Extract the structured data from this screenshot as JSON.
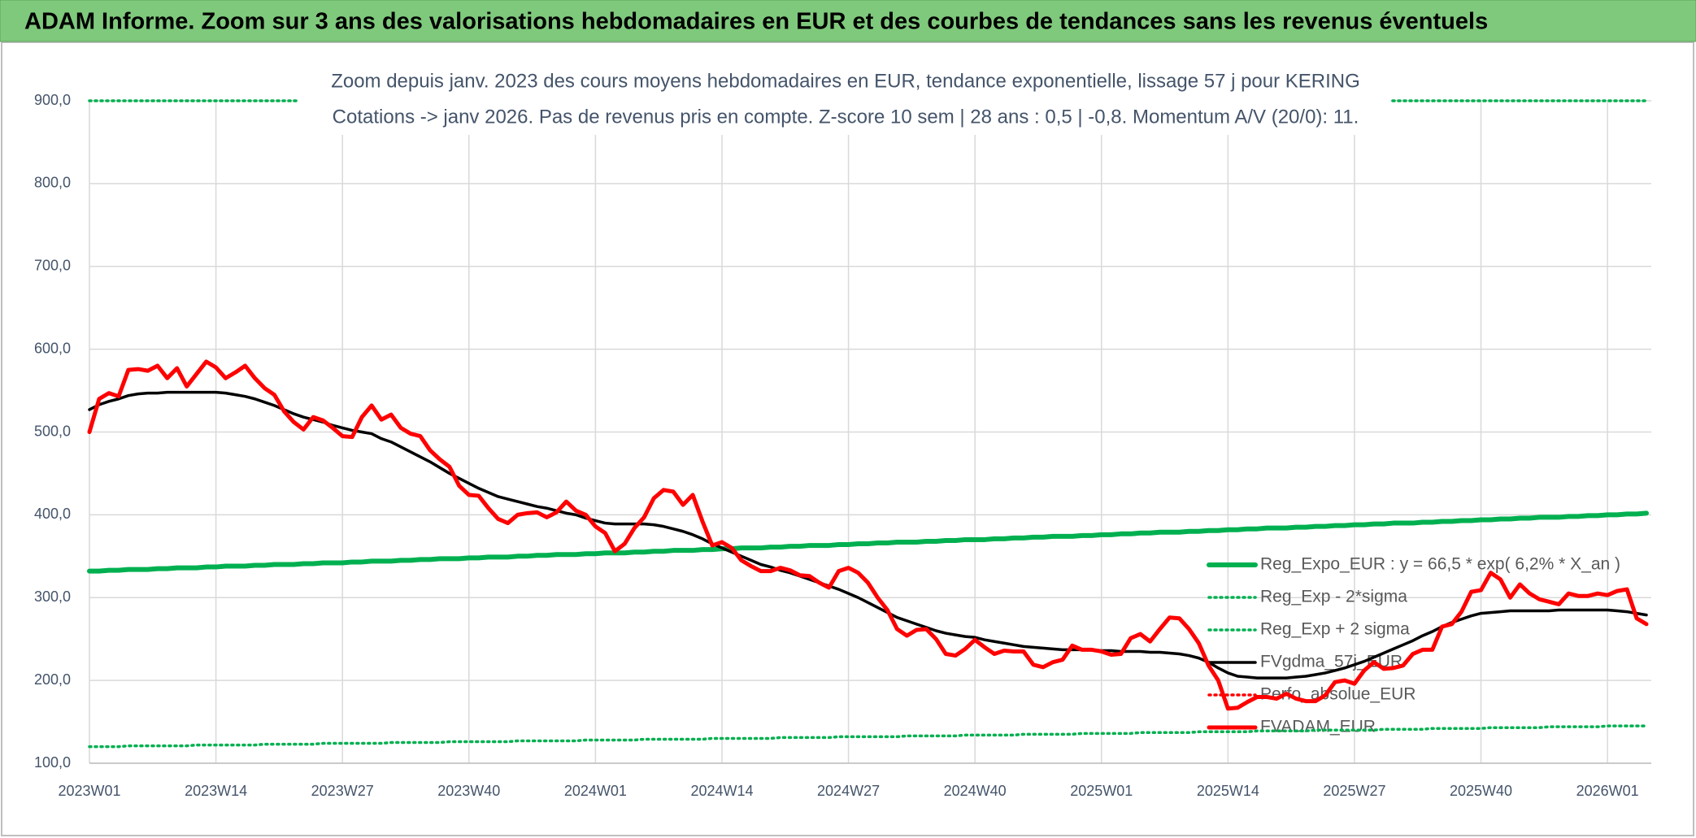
{
  "chart_data": {
    "type": "line",
    "title": "ADAM Informe. Zoom sur 3 ans des valorisations hebdomadaires en EUR et des courbes de tendances sans les revenus éventuels",
    "subtitle": [
      "Zoom depuis janv. 2023 des cours moyens hebdomadaires en EUR, tendance exponentielle, lissage 57 j pour KERING",
      "Cotations -> janv 2026. Pas de revenus pris en compte. Z-score 10 sem | 28 ans : 0,5 | -0,8. Momentum A/V (20/0): 11."
    ],
    "categories": [
      "2023W01",
      null,
      null,
      null,
      null,
      null,
      null,
      null,
      null,
      null,
      null,
      null,
      null,
      "2023W14",
      null,
      null,
      null,
      null,
      null,
      null,
      null,
      null,
      null,
      null,
      null,
      null,
      "2023W27",
      null,
      null,
      null,
      null,
      null,
      null,
      null,
      null,
      null,
      null,
      null,
      null,
      "2023W40",
      null,
      null,
      null,
      null,
      null,
      null,
      null,
      null,
      null,
      null,
      null,
      null,
      "2024W01",
      null,
      null,
      null,
      null,
      null,
      null,
      null,
      null,
      null,
      null,
      null,
      null,
      "2024W14",
      null,
      null,
      null,
      null,
      null,
      null,
      null,
      null,
      null,
      null,
      null,
      null,
      "2024W27",
      null,
      null,
      null,
      null,
      null,
      null,
      null,
      null,
      null,
      null,
      null,
      null,
      "2024W40",
      null,
      null,
      null,
      null,
      null,
      null,
      null,
      null,
      null,
      null,
      null,
      null,
      "2025W01",
      null,
      null,
      null,
      null,
      null,
      null,
      null,
      null,
      null,
      null,
      null,
      null,
      "2025W14",
      null,
      null,
      null,
      null,
      null,
      null,
      null,
      null,
      null,
      null,
      null,
      null,
      "2025W27",
      null,
      null,
      null,
      null,
      null,
      null,
      null,
      null,
      null,
      null,
      null,
      null,
      "2025W40",
      null,
      null,
      null,
      null,
      null,
      null,
      null,
      null,
      null,
      null,
      null,
      null,
      "2026W01",
      null,
      null,
      null,
      null
    ],
    "ylim": [
      100,
      900
    ],
    "yticks": [
      {
        "value": 100,
        "label": "100,0"
      },
      {
        "value": 200,
        "label": "200,0"
      },
      {
        "value": 300,
        "label": "300,0"
      },
      {
        "value": 400,
        "label": "400,0"
      },
      {
        "value": 500,
        "label": "500,0"
      },
      {
        "value": 600,
        "label": "600,0"
      },
      {
        "value": 700,
        "label": "700,0"
      },
      {
        "value": 800,
        "label": "800,0"
      },
      {
        "value": 900,
        "label": "900,0"
      }
    ],
    "grid": true,
    "legend": "right",
    "series": [
      {
        "name": "Reg_Expo_EUR : y = 66,5 * exp( 6,2% *  X_an )",
        "color": "#00b050",
        "style": "thick",
        "values": [
          332,
          332,
          333,
          333,
          334,
          334,
          334,
          335,
          335,
          336,
          336,
          336,
          337,
          337,
          338,
          338,
          338,
          339,
          339,
          340,
          340,
          340,
          341,
          341,
          342,
          342,
          342,
          343,
          343,
          344,
          344,
          344,
          345,
          345,
          346,
          346,
          347,
          347,
          347,
          348,
          348,
          349,
          349,
          349,
          350,
          350,
          351,
          351,
          352,
          352,
          352,
          353,
          353,
          354,
          354,
          354,
          355,
          355,
          356,
          356,
          357,
          357,
          357,
          358,
          358,
          359,
          359,
          360,
          360,
          360,
          361,
          361,
          362,
          362,
          363,
          363,
          363,
          364,
          364,
          365,
          365,
          366,
          366,
          367,
          367,
          367,
          368,
          368,
          369,
          369,
          370,
          370,
          370,
          371,
          371,
          372,
          372,
          373,
          373,
          374,
          374,
          374,
          375,
          375,
          376,
          376,
          377,
          377,
          378,
          378,
          379,
          379,
          379,
          380,
          380,
          381,
          381,
          382,
          382,
          383,
          383,
          384,
          384,
          384,
          385,
          385,
          386,
          386,
          387,
          387,
          388,
          388,
          389,
          389,
          390,
          390,
          390,
          391,
          391,
          392,
          392,
          393,
          393,
          394,
          394,
          395,
          395,
          396,
          396,
          397,
          397,
          397,
          398,
          398,
          399,
          399,
          400,
          400,
          401,
          401,
          402
        ]
      },
      {
        "name": "Reg_Exp - 2*sigma",
        "color": "#00b050",
        "style": "dotted",
        "values": [
          120,
          120,
          120,
          120,
          121,
          121,
          121,
          121,
          121,
          121,
          121,
          122,
          122,
          122,
          122,
          122,
          122,
          122,
          123,
          123,
          123,
          123,
          123,
          123,
          124,
          124,
          124,
          124,
          124,
          124,
          124,
          125,
          125,
          125,
          125,
          125,
          125,
          126,
          126,
          126,
          126,
          126,
          126,
          126,
          127,
          127,
          127,
          127,
          127,
          127,
          127,
          128,
          128,
          128,
          128,
          128,
          128,
          129,
          129,
          129,
          129,
          129,
          129,
          129,
          130,
          130,
          130,
          130,
          130,
          130,
          130,
          131,
          131,
          131,
          131,
          131,
          131,
          132,
          132,
          132,
          132,
          132,
          132,
          132,
          133,
          133,
          133,
          133,
          133,
          133,
          134,
          134,
          134,
          134,
          134,
          134,
          135,
          135,
          135,
          135,
          135,
          135,
          136,
          136,
          136,
          136,
          136,
          136,
          137,
          137,
          137,
          137,
          137,
          137,
          138,
          138,
          138,
          138,
          138,
          138,
          139,
          139,
          139,
          139,
          139,
          139,
          140,
          140,
          140,
          140,
          140,
          140,
          140,
          141,
          141,
          141,
          141,
          141,
          142,
          142,
          142,
          142,
          142,
          142,
          143,
          143,
          143,
          143,
          143,
          143,
          144,
          144,
          144,
          144,
          144,
          144,
          145,
          145,
          145,
          145,
          145
        ]
      },
      {
        "name": "Reg_Exp + 2 sigma",
        "color": "#00b050",
        "style": "dotted",
        "values": [
          900,
          900,
          900,
          900,
          900,
          900,
          900,
          900,
          900,
          900,
          900,
          900,
          900,
          900,
          900,
          900,
          900,
          900,
          900,
          900,
          900,
          900,
          900,
          900,
          900,
          900,
          900,
          900,
          900,
          900,
          900,
          900,
          900,
          900,
          900,
          900,
          900,
          900,
          900,
          900,
          900,
          900,
          900,
          900,
          900,
          900,
          900,
          900,
          900,
          900,
          900,
          900,
          900,
          900,
          900,
          900,
          900,
          900,
          900,
          900,
          900,
          900,
          900,
          900,
          900,
          900,
          900,
          900,
          900,
          900,
          900,
          900,
          900,
          900,
          900,
          900,
          900,
          900,
          900,
          900,
          900,
          900,
          900,
          900,
          900,
          900,
          900,
          900,
          900,
          900,
          900,
          900,
          900,
          900,
          900,
          900,
          900,
          900,
          900,
          900,
          900,
          900,
          900,
          900,
          900,
          900,
          900,
          900,
          900,
          900,
          900,
          900,
          900,
          900,
          900,
          900,
          900,
          900,
          900,
          900,
          900,
          900,
          900,
          900,
          900,
          900,
          900,
          900,
          900,
          900,
          900,
          900,
          900,
          900,
          900,
          900,
          900,
          900,
          900,
          900,
          900,
          900,
          900,
          900,
          900,
          900,
          900,
          900,
          900,
          900,
          900,
          900,
          900,
          900,
          900,
          900,
          900,
          900,
          900,
          900,
          900
        ]
      },
      {
        "name": "FVgdma_57j_EUR",
        "color": "#000000",
        "style": "solid",
        "values": [
          527,
          533,
          537,
          540,
          544,
          546,
          547,
          547,
          548,
          548,
          548,
          548,
          548,
          548,
          547,
          545,
          543,
          540,
          536,
          532,
          527,
          522,
          518,
          515,
          512,
          508,
          505,
          502,
          500,
          498,
          492,
          488,
          482,
          476,
          470,
          464,
          457,
          450,
          444,
          438,
          432,
          427,
          422,
          419,
          416,
          413,
          410,
          408,
          405,
          402,
          400,
          396,
          393,
          390,
          389,
          389,
          389,
          389,
          388,
          386,
          383,
          380,
          376,
          371,
          365,
          360,
          355,
          350,
          345,
          340,
          337,
          333,
          330,
          326,
          322,
          318,
          314,
          310,
          305,
          300,
          294,
          288,
          282,
          276,
          272,
          268,
          264,
          260,
          257,
          255,
          253,
          252,
          249,
          247,
          245,
          243,
          241,
          240,
          239,
          238,
          237,
          237,
          237,
          237,
          236,
          236,
          235,
          235,
          235,
          234,
          234,
          233,
          232,
          230,
          227,
          222,
          215,
          209,
          205,
          204,
          203,
          203,
          203,
          203,
          204,
          205,
          207,
          209,
          212,
          215,
          219,
          223,
          228,
          233,
          238,
          243,
          248,
          254,
          259,
          265,
          270,
          274,
          278,
          281,
          282,
          283,
          284,
          284,
          284,
          284,
          284,
          285,
          285,
          285,
          285,
          285,
          285,
          284,
          283,
          281,
          279
        ]
      },
      {
        "name": "Perfo_absolue_EUR",
        "color": "#ff0000",
        "style": "dotted",
        "values": [
          null,
          null,
          null,
          null,
          null,
          null,
          null,
          null,
          null,
          null,
          null,
          null,
          null,
          null,
          null,
          null,
          null,
          null,
          null,
          null,
          null,
          null,
          null,
          null,
          null,
          null,
          null,
          null,
          null,
          null,
          null,
          null,
          null,
          null,
          null,
          null,
          null,
          null,
          null,
          null,
          null,
          null,
          null,
          null,
          null,
          null,
          null,
          null,
          null,
          null,
          null,
          null,
          null,
          null,
          null,
          null,
          null,
          null,
          null,
          null,
          null,
          null,
          null,
          null,
          null,
          null,
          null,
          null,
          null,
          null,
          null,
          null,
          null,
          null,
          null,
          null,
          null,
          null,
          null,
          null,
          null,
          null,
          null,
          null,
          null,
          null,
          null,
          null,
          null,
          null,
          null,
          null,
          null,
          null,
          null,
          null,
          null,
          null,
          null,
          null,
          null,
          null,
          null,
          null,
          null,
          null,
          null,
          null,
          null,
          null,
          null,
          null,
          null,
          null,
          null,
          null,
          null,
          null,
          null,
          null,
          null,
          null,
          null,
          null,
          null,
          null,
          null,
          null,
          null,
          null,
          null,
          null,
          null,
          null,
          null,
          null,
          null,
          null,
          null,
          null,
          null,
          null,
          null,
          null,
          null,
          null,
          null,
          null,
          null,
          null,
          null,
          null,
          null,
          null,
          null,
          null,
          null,
          null,
          null,
          null,
          null
        ]
      },
      {
        "name": "FVADAM_EUR",
        "color": "#ff0000",
        "style": "bold",
        "values": [
          500,
          540,
          547,
          543,
          575,
          576,
          574,
          580,
          565,
          577,
          555,
          570,
          585,
          578,
          565,
          572,
          580,
          565,
          553,
          545,
          525,
          512,
          503,
          518,
          514,
          505,
          495,
          494,
          518,
          532,
          515,
          521,
          505,
          498,
          495,
          478,
          467,
          458,
          435,
          424,
          423,
          408,
          395,
          390,
          400,
          402,
          403,
          397,
          403,
          416,
          405,
          400,
          386,
          378,
          356,
          365,
          384,
          397,
          420,
          430,
          428,
          412,
          424,
          392,
          363,
          367,
          360,
          345,
          338,
          332,
          332,
          336,
          333,
          327,
          326,
          318,
          312,
          332,
          336,
          330,
          318,
          300,
          285,
          262,
          254,
          261,
          262,
          250,
          232,
          230,
          238,
          249,
          240,
          232,
          236,
          235,
          235,
          219,
          216,
          222,
          225,
          242,
          237,
          237,
          235,
          231,
          232,
          251,
          256,
          247,
          262,
          276,
          275,
          262,
          245,
          218,
          200,
          166,
          167,
          174,
          180,
          180,
          178,
          184,
          178,
          175,
          175,
          182,
          198,
          200,
          196,
          212,
          222,
          214,
          215,
          218,
          232,
          237,
          237,
          265,
          268,
          283,
          307,
          309,
          330,
          322,
          300,
          316,
          305,
          298,
          295,
          292,
          305,
          302,
          302,
          305,
          303,
          308,
          310,
          275,
          268
        ]
      }
    ]
  }
}
